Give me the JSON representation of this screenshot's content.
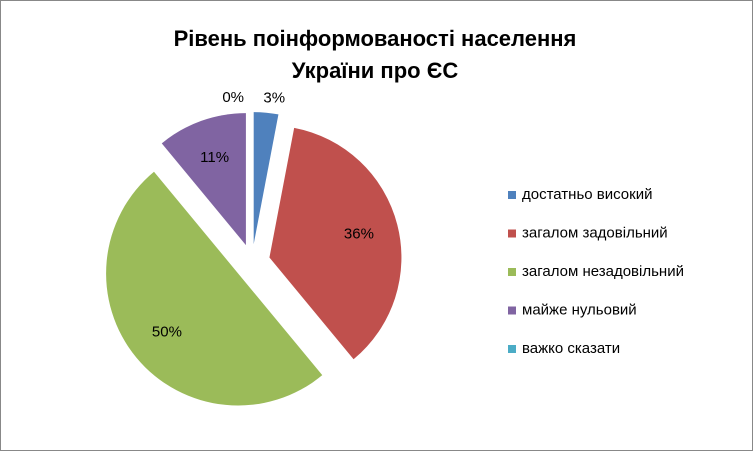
{
  "chart_data": {
    "type": "pie",
    "title": [
      "Рівень  поінформованості   населення",
      "України  про ЄС"
    ],
    "categories": [
      "достатньо високий",
      "загалом задовільний",
      "загалом незадовільний",
      "майже нульовий",
      "важко сказати"
    ],
    "values": [
      3,
      36,
      50,
      11,
      0
    ],
    "value_labels": [
      "3%",
      "36%",
      "50%",
      "11%",
      "0%"
    ],
    "colors": [
      "#4f81bd",
      "#c0504d",
      "#9bbb59",
      "#8064a2",
      "#4bacc6"
    ],
    "legend": "right"
  }
}
